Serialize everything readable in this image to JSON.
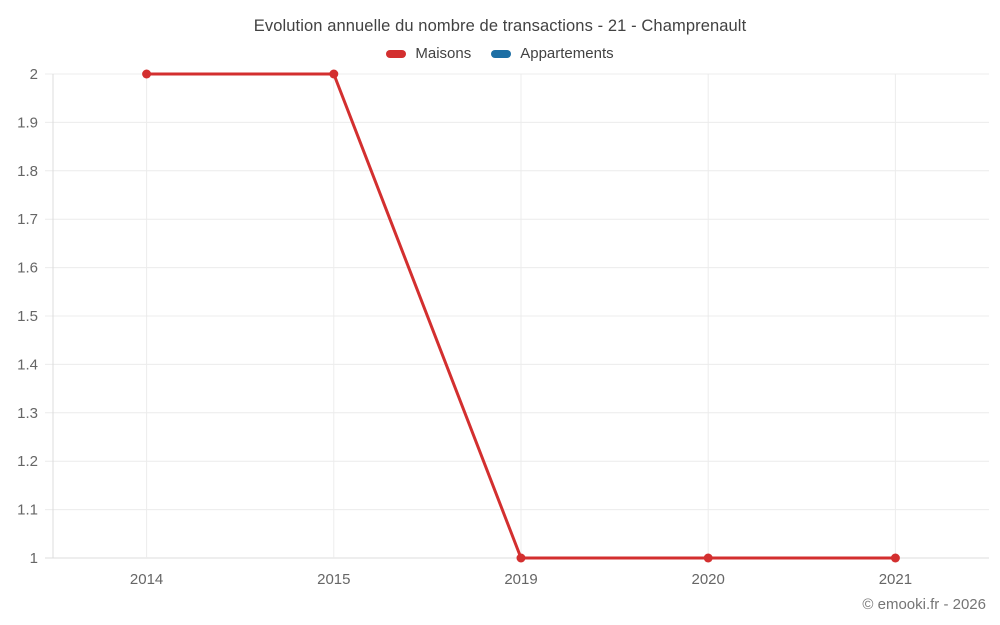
{
  "header": {
    "title": "Evolution annuelle du nombre de transactions - 21 - Champrenault"
  },
  "legend": {
    "position": "top",
    "items": [
      {
        "label": "Maisons",
        "color": "#d32f2f"
      },
      {
        "label": "Appartements",
        "color": "#1c6ea4"
      }
    ]
  },
  "chart_data": {
    "type": "line",
    "title": "Evolution annuelle du nombre de transactions - 21 - Champrenault",
    "categories": [
      "2014",
      "2015",
      "2019",
      "2020",
      "2021"
    ],
    "series": [
      {
        "name": "Maisons",
        "color": "#d32f2f",
        "values": [
          2,
          2,
          1,
          1,
          1
        ]
      },
      {
        "name": "Appartements",
        "color": "#1c6ea4",
        "values": []
      }
    ],
    "xlabel": "",
    "ylabel": "",
    "ylim": [
      1,
      2
    ],
    "grid": true,
    "legend_position": "top",
    "yticks": [
      {
        "value": 2,
        "label": "2"
      },
      {
        "value": 1.9,
        "label": "1.9"
      },
      {
        "value": 1.8,
        "label": "1.8"
      },
      {
        "value": 1.7,
        "label": "1.7"
      },
      {
        "value": 1.6,
        "label": "1.6"
      },
      {
        "value": 1.5,
        "label": "1.5"
      },
      {
        "value": 1.4,
        "label": "1.4"
      },
      {
        "value": 1.3,
        "label": "1.3"
      },
      {
        "value": 1.2,
        "label": "1.2"
      },
      {
        "value": 1.1,
        "label": "1.1"
      },
      {
        "value": 1,
        "label": "1"
      }
    ]
  },
  "colors": {
    "gridline": "#ececec",
    "axis_line": "#dcdcdc",
    "tick_label": "#666666",
    "title_text": "#424242",
    "credit_text": "#757575"
  },
  "footer": {
    "credit": "© emooki.fr - 2026"
  }
}
